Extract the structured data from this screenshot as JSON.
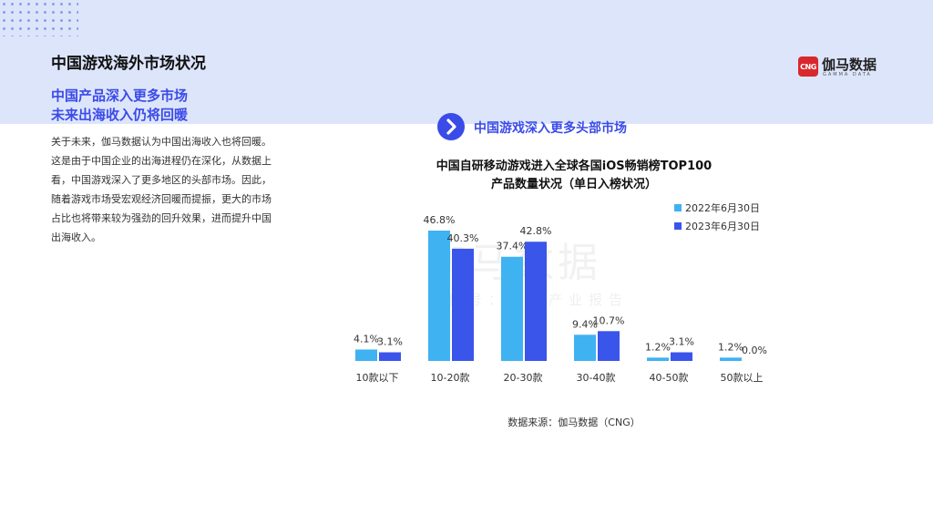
{
  "page": {
    "title": "中国游戏海外市场状况",
    "subtitle_lines": [
      "中国产品深入更多市场",
      "未来出海收入仍将回暖"
    ],
    "body": "关于未来，伽马数据认为中国出海收入也将回暖。这是由于中国企业的出海进程仍在深化，从数据上看，中国游戏深入了更多地区的头部市场。因此，随着游戏市场受宏观经济回暖而提振，更大的市场占比也将带来较为强劲的回升效果，进而提升中国出海收入。",
    "logo_name": "伽马数据",
    "logo_mark": "CNG",
    "logo_sub": "GAMMA DATA",
    "section_label": "中国游戏深入更多头部市场",
    "section_icon": "chevron-right-icon",
    "source": "数据来源：伽马数据（CNG）",
    "watermark_main": "伽马数据",
    "watermark_sub": "微信号：游戏产业报告"
  },
  "colors": {
    "band": "#dde5fb",
    "accent": "#3a4be8",
    "series_2022": "#3fb2f2",
    "series_2023": "#3a55ea",
    "logo_red": "#d8272d"
  },
  "chart_data": {
    "type": "bar",
    "title_lines": [
      "中国自研移动游戏进入全球各国iOS畅销榜TOP100",
      "产品数量状况（单日入榜状况）"
    ],
    "categories": [
      "10款以下",
      "10-20款",
      "20-30款",
      "30-40款",
      "40-50款",
      "50款以上"
    ],
    "series": [
      {
        "name": "2022年6月30日",
        "values": [
          4.1,
          46.8,
          37.4,
          9.4,
          1.2,
          1.2
        ],
        "labels": [
          "4.1%",
          "46.8%",
          "37.4%",
          "9.4%",
          "1.2%",
          "1.2%"
        ]
      },
      {
        "name": "2023年6月30日",
        "values": [
          3.1,
          40.3,
          42.8,
          10.7,
          3.1,
          0.0
        ],
        "labels": [
          "3.1%",
          "40.3%",
          "42.8%",
          "10.7%",
          "3.1%",
          "0.0%"
        ]
      }
    ],
    "unit": "%",
    "ylim": [
      0,
      50
    ],
    "grid": false,
    "legend_position": "top-right"
  }
}
